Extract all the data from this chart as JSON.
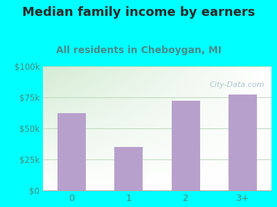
{
  "title": "Median family income by earners",
  "subtitle": "All residents in Cheboygan, MI",
  "categories": [
    "0",
    "1",
    "2",
    "3+"
  ],
  "values": [
    62000,
    35000,
    72000,
    77000
  ],
  "bar_color": "#b8a0cc",
  "background_color": "#00FFFF",
  "plot_bg_top_left": "#d4ecd4",
  "plot_bg_bottom_right": "#ffffff",
  "title_color": "#2a2a2a",
  "subtitle_color": "#4a8a8a",
  "tick_color": "#4a8a7a",
  "grid_color": "#c0d8c0",
  "ylim": [
    0,
    100000
  ],
  "yticks": [
    0,
    25000,
    50000,
    75000,
    100000
  ],
  "ytick_labels": [
    "$0",
    "$25k",
    "$50k",
    "$75k",
    "$100k"
  ],
  "watermark": "City-Data.com",
  "title_fontsize": 13,
  "subtitle_fontsize": 10
}
